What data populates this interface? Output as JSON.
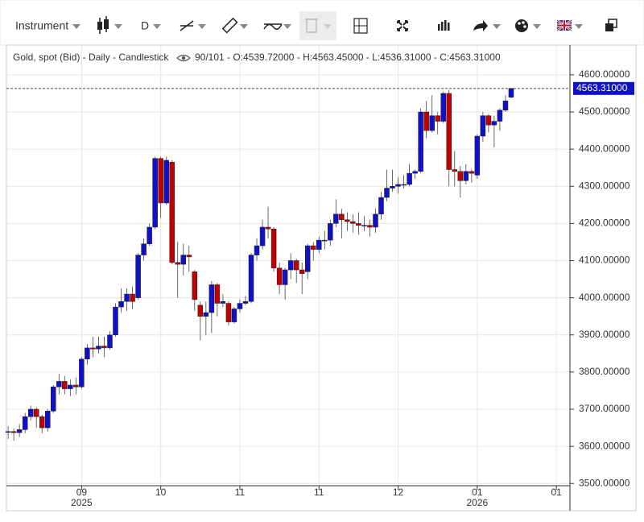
{
  "toolbar": {
    "instrument": "Instrument",
    "interval": "D"
  },
  "chart_data": {
    "type": "candlestick",
    "title": "Gold, spot (Bid) - Daily - Candlestick",
    "info": "90/101 - O:4539.72000 - H:4563.45000 - L:4536.31000 - C:4563.31000",
    "up_color": "#1010c8",
    "down_color": "#c00000",
    "open": [
      3640,
      3640,
      3637,
      3645,
      3680,
      3700,
      3680,
      3650,
      3695,
      3760,
      3775,
      3755,
      3765,
      3760,
      3835,
      3865,
      3862,
      3870,
      3865,
      3900,
      3975,
      3990,
      4010,
      4000,
      4115,
      4145,
      4190,
      4375,
      4255,
      4365,
      4095,
      4090,
      4115,
      4070,
      3980,
      3950,
      3960,
      4035,
      3985,
      3985,
      3935,
      3970,
      3985,
      3990,
      4115,
      4140,
      4190,
      4185,
      4080,
      4035,
      4075,
      4100,
      4075,
      4070,
      4140,
      4130,
      4155,
      4155,
      4200,
      4225,
      4210,
      4205,
      4200,
      4195,
      4195,
      4190,
      4225,
      4270,
      4295,
      4300,
      4305,
      4305,
      4335,
      4340,
      4500,
      4450,
      4490,
      4475,
      4550,
      4345,
      4340,
      4315,
      4340,
      4330,
      4435,
      4490,
      4465,
      4475,
      4505,
      4539.72
    ],
    "high": [
      3655,
      3648,
      3660,
      3690,
      3710,
      3705,
      3685,
      3700,
      3765,
      3795,
      3790,
      3780,
      3785,
      3840,
      3875,
      3895,
      3895,
      3895,
      3910,
      3985,
      4025,
      4025,
      4030,
      4120,
      4160,
      4200,
      4380,
      4380,
      4380,
      4370,
      4150,
      4145,
      4140,
      4075,
      3990,
      3990,
      4045,
      4040,
      4010,
      3990,
      3975,
      3995,
      4005,
      4120,
      4160,
      4210,
      4245,
      4190,
      4095,
      4080,
      4120,
      4105,
      4095,
      4145,
      4150,
      4165,
      4180,
      4210,
      4265,
      4240,
      4230,
      4225,
      4230,
      4220,
      4210,
      4240,
      4285,
      4345,
      4345,
      4325,
      4330,
      4360,
      4345,
      4510,
      4530,
      4545,
      4500,
      4555,
      4560,
      4395,
      4355,
      4360,
      4345,
      4440,
      4500,
      4495,
      4490,
      4510,
      4545,
      4563.45
    ],
    "low": [
      3620,
      3615,
      3625,
      3635,
      3670,
      3650,
      3635,
      3640,
      3690,
      3740,
      3740,
      3735,
      3740,
      3755,
      3820,
      3840,
      3850,
      3840,
      3860,
      3895,
      3960,
      3965,
      3970,
      3995,
      4100,
      4140,
      4185,
      4215,
      4250,
      4090,
      4000,
      4060,
      4070,
      3965,
      3885,
      3900,
      3905,
      3950,
      3975,
      3925,
      3930,
      3960,
      3980,
      3985,
      4100,
      4130,
      4160,
      4070,
      4010,
      3995,
      4050,
      4040,
      4010,
      4050,
      4100,
      4120,
      4130,
      4140,
      4190,
      4160,
      4180,
      4175,
      4170,
      4180,
      4165,
      4175,
      4210,
      4260,
      4285,
      4280,
      4295,
      4300,
      4320,
      4335,
      4430,
      4445,
      4440,
      4470,
      4300,
      4300,
      4270,
      4305,
      4310,
      4320,
      4420,
      4445,
      4405,
      4450,
      4500,
      4536.31
    ],
    "close": [
      3640,
      3637,
      3645,
      3680,
      3700,
      3680,
      3650,
      3695,
      3760,
      3775,
      3755,
      3765,
      3760,
      3835,
      3865,
      3862,
      3870,
      3865,
      3900,
      3975,
      3990,
      4010,
      3990,
      4115,
      4145,
      4190,
      4375,
      4255,
      4370,
      4095,
      4090,
      4115,
      4110,
      3995,
      3950,
      3960,
      4035,
      3985,
      3990,
      3935,
      3970,
      3985,
      3990,
      4115,
      4140,
      4190,
      4185,
      4080,
      4035,
      4075,
      4100,
      4075,
      4065,
      4140,
      4130,
      4155,
      4155,
      4200,
      4225,
      4210,
      4205,
      4200,
      4195,
      4195,
      4190,
      4225,
      4270,
      4295,
      4300,
      4305,
      4305,
      4335,
      4340,
      4500,
      4450,
      4490,
      4475,
      4550,
      4345,
      4340,
      4315,
      4340,
      4335,
      4435,
      4490,
      4465,
      4475,
      4505,
      4530,
      4563.31
    ],
    "xlim": [
      -0.3,
      99.4
    ],
    "xticks": [
      {
        "value": 13,
        "label": "09"
      },
      {
        "value": 27,
        "label": "10"
      },
      {
        "value": 41,
        "label": "11"
      },
      {
        "value": 55,
        "label": "11"
      },
      {
        "value": 69,
        "label": "12"
      },
      {
        "value": 83,
        "label": "01"
      },
      {
        "value": 97,
        "label": "01"
      }
    ],
    "year_labels": [
      {
        "value": 13,
        "label": "2025"
      },
      {
        "value": 83,
        "label": "2026"
      }
    ],
    "ylim": [
      3494,
      4680
    ],
    "yticks": [
      {
        "value": 3500,
        "label": "3500.00000"
      },
      {
        "value": 3600,
        "label": "3600.00000"
      },
      {
        "value": 3700,
        "label": "3700.00000"
      },
      {
        "value": 3800,
        "label": "3800.00000"
      },
      {
        "value": 3900,
        "label": "3900.00000"
      },
      {
        "value": 4000,
        "label": "4000.00000"
      },
      {
        "value": 4100,
        "label": "4100.00000"
      },
      {
        "value": 4200,
        "label": "4200.00000"
      },
      {
        "value": 4300,
        "label": "4300.00000"
      },
      {
        "value": 4400,
        "label": "4400.00000"
      },
      {
        "value": 4500,
        "label": "4500.00000"
      },
      {
        "value": 4600,
        "label": "4600.00000"
      }
    ],
    "last_price": {
      "value": 4563.31,
      "label": "4563.31000"
    },
    "grid": true
  }
}
